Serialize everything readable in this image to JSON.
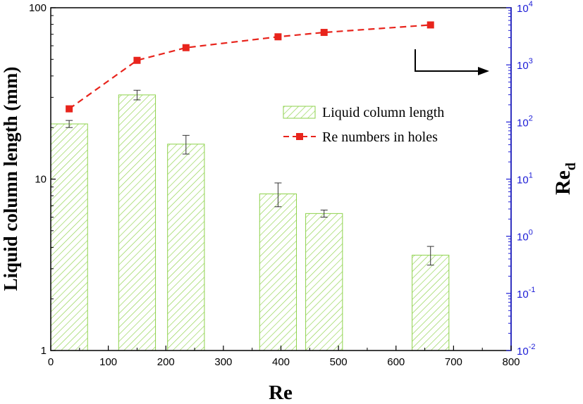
{
  "chart_data": {
    "type": "bar",
    "xlabel": "Re",
    "ylabel": "Liquid column length (mm)",
    "y2label_base": "Re",
    "y2label_sub": "d",
    "xlim": [
      0,
      800
    ],
    "ylim": [
      1,
      100
    ],
    "y_scale": "log",
    "y2lim": [
      0.01,
      10000
    ],
    "y2_scale": "log",
    "x_ticks": [
      "0",
      "100",
      "200",
      "300",
      "400",
      "500",
      "600",
      "700",
      "800"
    ],
    "y_ticks": [
      "1",
      "10",
      "100"
    ],
    "y2_ticks": [
      {
        "base": "10",
        "exp": "-2"
      },
      {
        "base": "10",
        "exp": "-1"
      },
      {
        "base": "10",
        "exp": "0"
      },
      {
        "base": "10",
        "exp": "1"
      },
      {
        "base": "10",
        "exp": "2"
      },
      {
        "base": "10",
        "exp": "3"
      },
      {
        "base": "10",
        "exp": "4"
      }
    ],
    "bar_series": {
      "name": "Liquid column length",
      "x": [
        32,
        150,
        235,
        395,
        475,
        660
      ],
      "bar_width": 64,
      "values": [
        21.0,
        31.0,
        16.0,
        8.2,
        6.3,
        3.6
      ],
      "error": [
        1.0,
        2.0,
        2.0,
        1.3,
        0.3,
        0.45
      ],
      "color": "#8ed24b"
    },
    "line_series": {
      "name": "Re numbers in holes",
      "axis": "right",
      "x": [
        32,
        150,
        235,
        395,
        475,
        660
      ],
      "values": [
        170,
        1200,
        2000,
        3100,
        3700,
        5000
      ],
      "color": "#e8241c"
    },
    "legend_position": "right-center",
    "annotation": "arrow pointing to right axis",
    "axis_colors": {
      "left": "#000000",
      "right": "#1b1bd6"
    },
    "grid": false
  }
}
